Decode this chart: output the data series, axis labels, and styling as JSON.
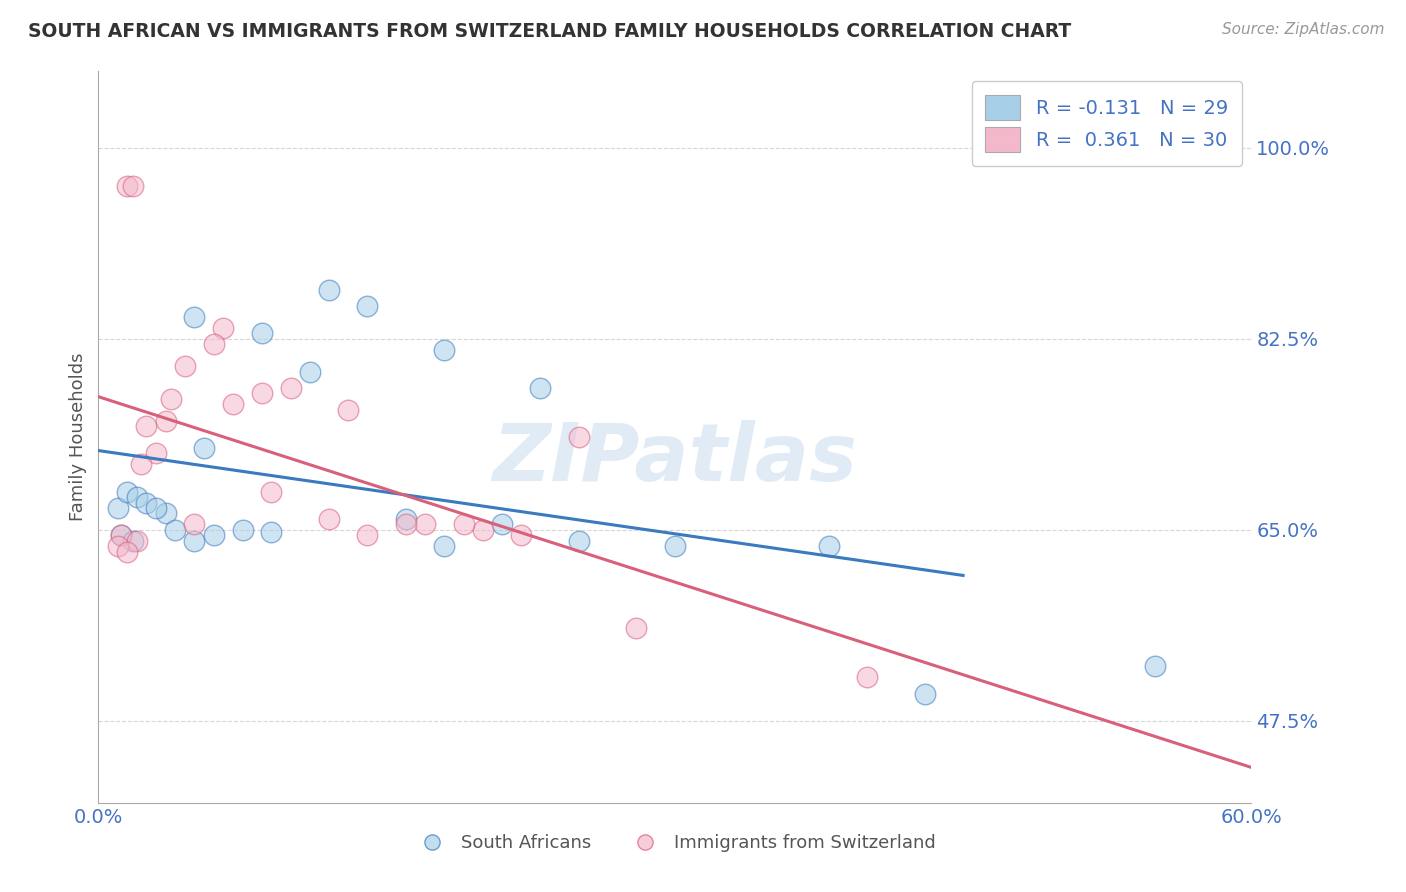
{
  "title": "SOUTH AFRICAN VS IMMIGRANTS FROM SWITZERLAND FAMILY HOUSEHOLDS CORRELATION CHART",
  "source": "Source: ZipAtlas.com",
  "ylabel": "Family Households",
  "xlim": [
    0.0,
    60.0
  ],
  "ylim": [
    40.0,
    107.0
  ],
  "yticks": [
    47.5,
    65.0,
    82.5,
    100.0
  ],
  "ytick_labels": [
    "47.5%",
    "65.0%",
    "82.5%",
    "100.0%"
  ],
  "xticks": [
    0.0,
    10.0,
    20.0,
    30.0,
    40.0,
    50.0,
    60.0
  ],
  "xtick_labels": [
    "0.0%",
    "",
    "",
    "",
    "",
    "",
    "60.0%"
  ],
  "blue_R": -0.131,
  "blue_N": 29,
  "pink_R": 0.361,
  "pink_N": 30,
  "blue_color": "#a8cfe8",
  "pink_color": "#f4b8cb",
  "blue_line_color": "#3a7abf",
  "pink_line_color": "#d9607a",
  "legend_label_blue": "South Africans",
  "legend_label_pink": "Immigrants from Switzerland",
  "blue_scatter_x": [
    1.0,
    1.5,
    2.0,
    2.5,
    3.5,
    4.0,
    5.0,
    6.0,
    7.5,
    9.0,
    11.0,
    14.0,
    18.0,
    23.0,
    1.2,
    1.8,
    3.0,
    5.5,
    8.5,
    12.0,
    16.0,
    21.0,
    25.0,
    30.0,
    38.0,
    43.0,
    55.0,
    5.0,
    18.0
  ],
  "blue_scatter_y": [
    67.0,
    68.5,
    68.0,
    67.5,
    66.5,
    65.0,
    64.0,
    64.5,
    65.0,
    64.8,
    79.5,
    85.5,
    81.5,
    78.0,
    64.5,
    64.0,
    67.0,
    72.5,
    83.0,
    87.0,
    66.0,
    65.5,
    64.0,
    63.5,
    63.5,
    50.0,
    52.5,
    84.5,
    63.5
  ],
  "pink_scatter_x": [
    1.5,
    1.8,
    2.5,
    3.0,
    5.0,
    7.0,
    10.0,
    13.0,
    17.0,
    22.0,
    1.2,
    2.0,
    3.5,
    4.5,
    6.5,
    8.5,
    12.0,
    16.0,
    20.0,
    25.0,
    1.0,
    1.5,
    2.2,
    3.8,
    6.0,
    9.0,
    14.0,
    19.0,
    28.0,
    40.0
  ],
  "pink_scatter_y": [
    96.5,
    96.5,
    74.5,
    72.0,
    65.5,
    76.5,
    78.0,
    76.0,
    65.5,
    64.5,
    64.5,
    64.0,
    75.0,
    80.0,
    83.5,
    77.5,
    66.0,
    65.5,
    65.0,
    73.5,
    63.5,
    63.0,
    71.0,
    77.0,
    82.0,
    68.5,
    64.5,
    65.5,
    56.0,
    51.5
  ],
  "watermark_text": "ZIPatlas",
  "background_color": "#ffffff",
  "grid_color": "#cccccc",
  "blue_line_xrange": [
    0.0,
    45.0
  ],
  "pink_line_xrange": [
    0.0,
    60.0
  ]
}
